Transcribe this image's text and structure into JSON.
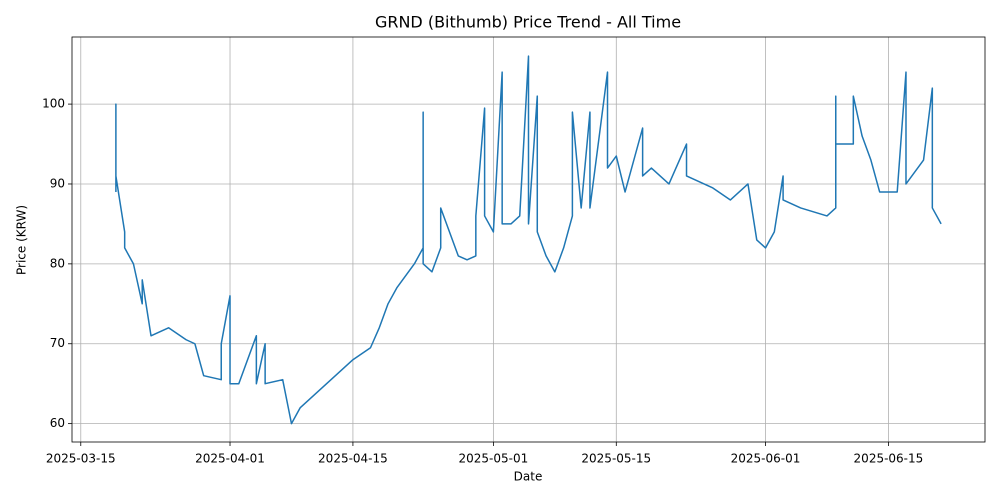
{
  "chart_data": {
    "type": "line",
    "title": "GRND (Bithumb) Price Trend - All Time",
    "xlabel": "Date",
    "ylabel": "Price (KRW)",
    "x": [
      "2025-03-19",
      "2025-03-19",
      "2025-03-19",
      "2025-03-20",
      "2025-03-20",
      "2025-03-21",
      "2025-03-22",
      "2025-03-22",
      "2025-03-23",
      "2025-03-25",
      "2025-03-27",
      "2025-03-28",
      "2025-03-29",
      "2025-03-31",
      "2025-03-31",
      "2025-04-01",
      "2025-04-01",
      "2025-04-02",
      "2025-04-04",
      "2025-04-04",
      "2025-04-05",
      "2025-04-05",
      "2025-04-07",
      "2025-04-08",
      "2025-04-09",
      "2025-04-10",
      "2025-04-12",
      "2025-04-14",
      "2025-04-15",
      "2025-04-17",
      "2025-04-18",
      "2025-04-19",
      "2025-04-20",
      "2025-04-22",
      "2025-04-23",
      "2025-04-23",
      "2025-04-23",
      "2025-04-24",
      "2025-04-25",
      "2025-04-25",
      "2025-04-27",
      "2025-04-28",
      "2025-04-29",
      "2025-04-29",
      "2025-04-30",
      "2025-04-30",
      "2025-05-01",
      "2025-05-02",
      "2025-05-02",
      "2025-05-03",
      "2025-05-04",
      "2025-05-05",
      "2025-05-05",
      "2025-05-06",
      "2025-05-06",
      "2025-05-07",
      "2025-05-08",
      "2025-05-09",
      "2025-05-10",
      "2025-05-10",
      "2025-05-11",
      "2025-05-12",
      "2025-05-12",
      "2025-05-14",
      "2025-05-14",
      "2025-05-15",
      "2025-05-16",
      "2025-05-18",
      "2025-05-18",
      "2025-05-19",
      "2025-05-21",
      "2025-05-23",
      "2025-05-23",
      "2025-05-26",
      "2025-05-28",
      "2025-05-30",
      "2025-05-31",
      "2025-06-01",
      "2025-06-02",
      "2025-06-03",
      "2025-06-03",
      "2025-06-05",
      "2025-06-08",
      "2025-06-09",
      "2025-06-09",
      "2025-06-09",
      "2025-06-11",
      "2025-06-11",
      "2025-06-12",
      "2025-06-13",
      "2025-06-14",
      "2025-06-16",
      "2025-06-17",
      "2025-06-17",
      "2025-06-19",
      "2025-06-20",
      "2025-06-20",
      "2025-06-21"
    ],
    "series": [
      {
        "name": "Price",
        "color": "#1f77b4",
        "values": [
          89,
          100,
          91,
          84,
          82,
          80,
          75,
          78,
          71,
          72,
          70.5,
          70,
          66,
          65.5,
          70,
          76,
          65,
          65,
          71,
          65,
          70,
          65,
          65.5,
          60,
          62,
          63,
          65,
          67,
          68,
          69.5,
          72,
          75,
          77,
          80,
          82,
          99,
          80,
          79,
          82,
          87,
          81,
          80.5,
          81,
          86,
          99.5,
          86,
          84,
          104,
          85,
          85,
          86,
          106,
          85,
          101,
          84,
          81,
          79,
          82,
          86,
          99,
          87,
          99,
          87,
          104,
          92,
          93.5,
          89,
          97,
          91,
          92,
          90,
          95,
          91,
          89.5,
          88,
          90,
          83,
          82,
          84,
          91,
          88,
          87,
          86,
          87,
          101,
          95,
          95,
          101,
          96,
          93,
          89,
          89,
          104,
          90,
          93,
          102,
          87,
          85
        ]
      }
    ],
    "xlim": [
      "2025-03-14",
      "2025-06-26"
    ],
    "xticks": [
      "2025-03-15",
      "2025-04-01",
      "2025-04-15",
      "2025-05-01",
      "2025-05-15",
      "2025-06-01",
      "2025-06-15"
    ],
    "ylim": [
      57.7,
      108.4
    ],
    "yticks": [
      60,
      70,
      80,
      90,
      100
    ],
    "grid": true
  }
}
